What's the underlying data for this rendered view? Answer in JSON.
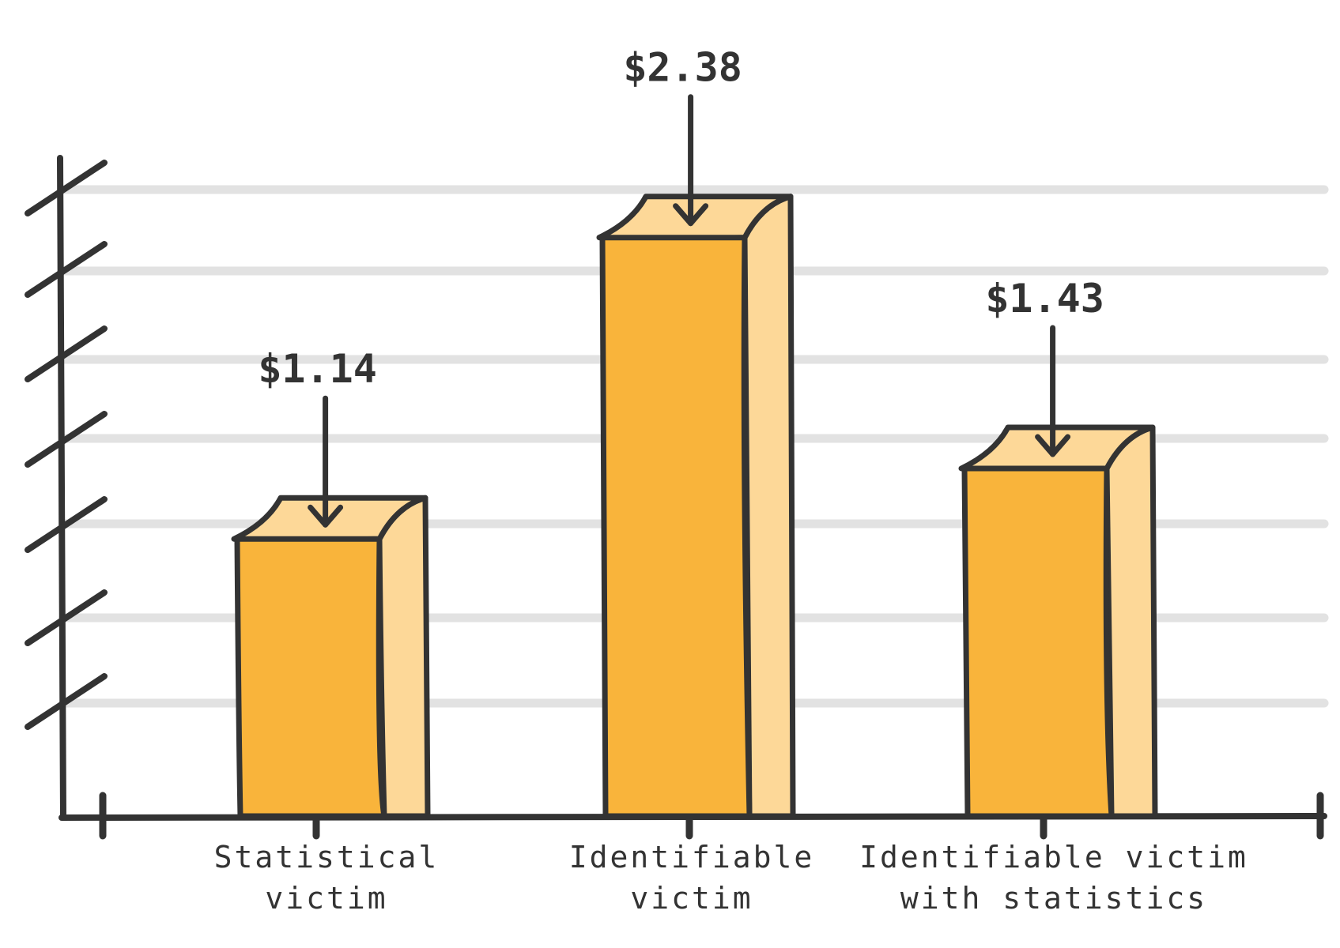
{
  "chart_data": {
    "type": "bar",
    "title": "",
    "xlabel": "",
    "ylabel": "",
    "categories": [
      [
        "Statistical",
        "victim"
      ],
      [
        "Identifiable",
        "victim"
      ],
      [
        "Identifiable victim",
        "with statistics"
      ]
    ],
    "values": [
      1.14,
      2.38,
      1.43
    ],
    "value_labels": [
      "$1.14",
      "$2.38",
      "$1.43"
    ],
    "ylim": [
      0,
      2.6
    ],
    "grid": true,
    "legend": "none"
  },
  "colors": {
    "bar_front": "#F9B43B",
    "bar_side": "#FDD898",
    "outline": "#333333",
    "gridline": "#E2E2E2"
  }
}
